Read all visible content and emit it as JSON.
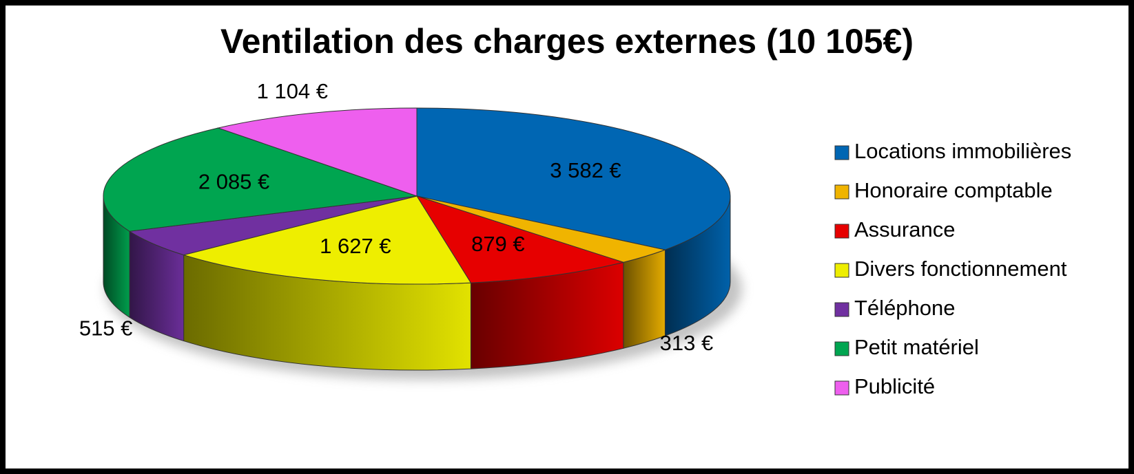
{
  "chart_data": {
    "type": "pie",
    "title": "Ventilation des charges externes (10 105€)",
    "categories": [
      "Locations immobilières",
      "Honoraire comptable",
      "Assurance",
      "Divers fonctionnement",
      "Téléphone",
      "Petit matériel",
      "Publicité"
    ],
    "values": [
      3582,
      313,
      879,
      1627,
      515,
      2085,
      1104
    ],
    "value_labels": [
      "3 582 €",
      "313 €",
      "879 €",
      "1 627 €",
      "515 €",
      "2 085 €",
      "1 104 €"
    ],
    "colors": [
      "#0066b3",
      "#f0b400",
      "#e60000",
      "#eeee00",
      "#7030a0",
      "#00a550",
      "#ee5fee"
    ],
    "legend": "right",
    "three_d": true
  }
}
